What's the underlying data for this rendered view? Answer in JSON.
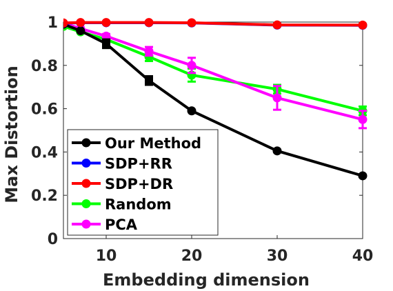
{
  "chart_data": {
    "type": "line",
    "title": "",
    "xlabel": "Embedding dimension",
    "ylabel": "Max Distortion",
    "xlim": [
      5,
      40
    ],
    "ylim": [
      0,
      1
    ],
    "xticks": [
      10,
      20,
      30,
      40
    ],
    "yticks": [
      0,
      0.2,
      0.4,
      0.6,
      0.8,
      1
    ],
    "ytick_labels": [
      "0",
      "0.2",
      "0.4",
      "0.6",
      "0.8",
      "1"
    ],
    "grid": false,
    "legend_position": "bottom-left",
    "series": [
      {
        "name": "Our Method",
        "color": "#000000",
        "marker": "square",
        "x": [
          5,
          7,
          10,
          15,
          20,
          30,
          40
        ],
        "y": [
          0.99,
          0.96,
          0.9,
          0.73,
          0.59,
          0.405,
          0.29
        ],
        "err": [
          0,
          0,
          0.02,
          0.02,
          0,
          0,
          0
        ]
      },
      {
        "name": "SDP+RR",
        "color": "#0000ff",
        "marker": "circle",
        "x": [
          5,
          7,
          10,
          15,
          20,
          30,
          40
        ],
        "y": [
          0.995,
          0.997,
          0.997,
          0.997,
          0.996,
          0.986,
          0.985
        ],
        "err": [
          0,
          0,
          0,
          0,
          0,
          0,
          0
        ]
      },
      {
        "name": "SDP+DR",
        "color": "#ff0000",
        "marker": "circle",
        "x": [
          5,
          7,
          10,
          15,
          20,
          30,
          40
        ],
        "y": [
          0.996,
          0.998,
          0.998,
          0.998,
          0.997,
          0.987,
          0.986
        ],
        "err": [
          0,
          0,
          0,
          0,
          0,
          0,
          0
        ]
      },
      {
        "name": "Random",
        "color": "#00ff00",
        "marker": "circle",
        "x": [
          5,
          7,
          10,
          15,
          20,
          30,
          40
        ],
        "y": [
          0.98,
          0.955,
          0.92,
          0.84,
          0.755,
          0.69,
          0.59
        ],
        "err": [
          0,
          0,
          0.02,
          0.02,
          0.03,
          0.02,
          0.02
        ]
      },
      {
        "name": "PCA",
        "color": "#ff00ff",
        "marker": "circle",
        "x": [
          5,
          7,
          10,
          15,
          20,
          30,
          40
        ],
        "y": [
          0.995,
          0.97,
          0.935,
          0.865,
          0.8,
          0.65,
          0.55
        ],
        "err": [
          0,
          0,
          0.01,
          0.02,
          0.035,
          0.055,
          0.04
        ]
      }
    ]
  }
}
